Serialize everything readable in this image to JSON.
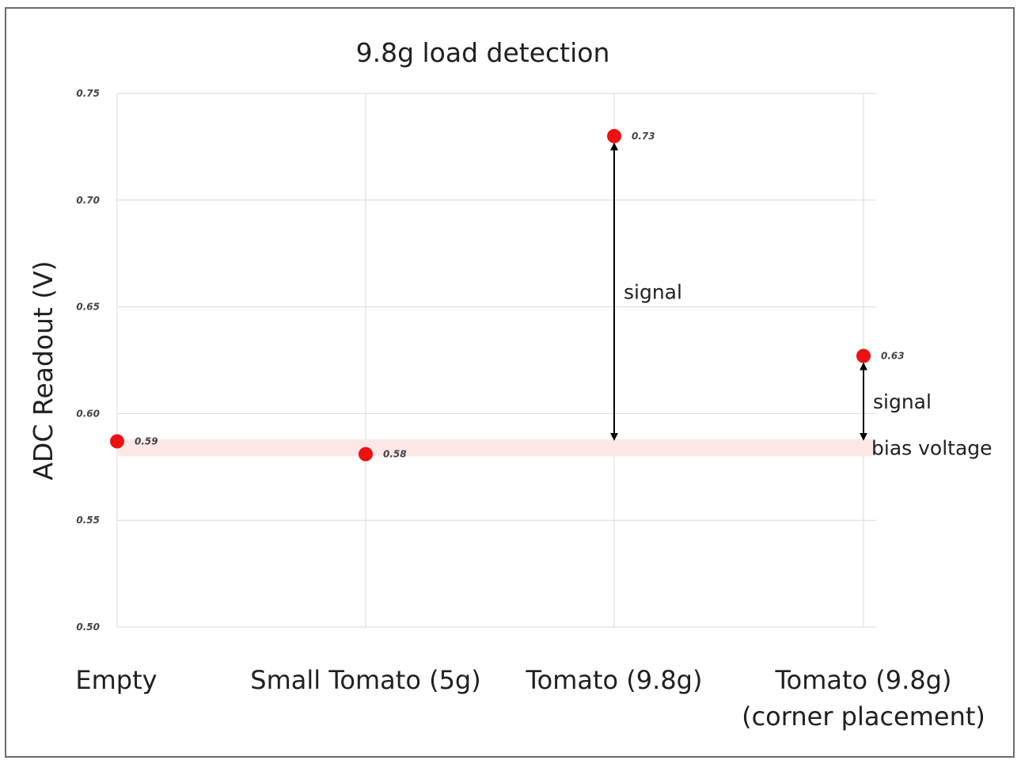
{
  "chart_data": {
    "type": "scatter",
    "title": "9.8g load detection",
    "ylabel": "ADC Readout (V)",
    "xlabel": "",
    "ylim": [
      0.5,
      0.75
    ],
    "yticks": [
      "0.50",
      "0.55",
      "0.60",
      "0.65",
      "0.70",
      "0.75"
    ],
    "grid": true,
    "categories": [
      [
        "Empty"
      ],
      [
        "Small Tomato (5g)"
      ],
      [
        "Tomato (9.8g)"
      ],
      [
        "Tomato (9.8g)",
        "(corner placement)"
      ]
    ],
    "values": [
      0.587,
      0.581,
      0.73,
      0.627
    ],
    "data_labels": [
      "0.59",
      "0.58",
      "0.73",
      "0.63"
    ],
    "marker_color": "#ee1111",
    "bias_band": {
      "label": "bias voltage",
      "range": [
        0.58,
        0.588
      ],
      "color": "#fde8e8"
    },
    "annotations": [
      {
        "label": "signal",
        "category_index": 2,
        "from": 0.588,
        "to": 0.73
      },
      {
        "label": "signal",
        "category_index": 3,
        "from": 0.588,
        "to": 0.627
      }
    ]
  }
}
